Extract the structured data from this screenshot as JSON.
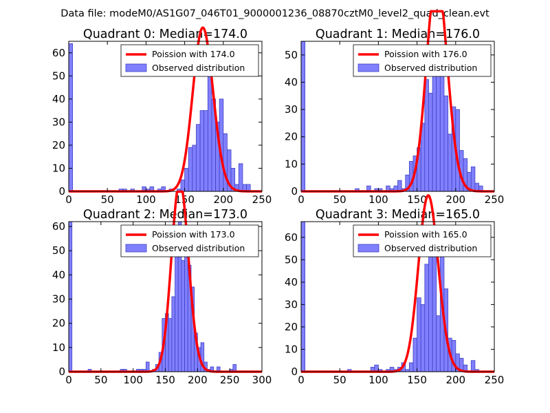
{
  "figure_title": "Data file: modeM0/AS1G07_046T01_9000001236_08870cztM0_level2_quad_clean.evt",
  "colors": {
    "bar_fill": "#8080ff",
    "bar_edge": "#4040c0",
    "fit_line": "#ff0000"
  },
  "chart_data": [
    {
      "type": "bar",
      "title": "Quadrant 0: Median=174.0",
      "median": 174.0,
      "xlim": [
        0,
        250
      ],
      "ylim": [
        0,
        65
      ],
      "xticks": [
        0,
        50,
        100,
        150,
        200,
        250
      ],
      "yticks": [
        0,
        10,
        20,
        30,
        40,
        50,
        60
      ],
      "bin_width": 5,
      "bins": [
        [
          0,
          64
        ],
        [
          65,
          1
        ],
        [
          70,
          1
        ],
        [
          80,
          1
        ],
        [
          95,
          2
        ],
        [
          100,
          1
        ],
        [
          105,
          2
        ],
        [
          115,
          1
        ],
        [
          120,
          2
        ],
        [
          130,
          1
        ],
        [
          140,
          1
        ],
        [
          145,
          5
        ],
        [
          150,
          10
        ],
        [
          155,
          19
        ],
        [
          160,
          20
        ],
        [
          165,
          29
        ],
        [
          170,
          35
        ],
        [
          175,
          35
        ],
        [
          180,
          55
        ],
        [
          185,
          40
        ],
        [
          190,
          30
        ],
        [
          195,
          40
        ],
        [
          200,
          25
        ],
        [
          205,
          18
        ],
        [
          210,
          10
        ],
        [
          215,
          3
        ],
        [
          220,
          12
        ],
        [
          225,
          3
        ],
        [
          230,
          3
        ]
      ],
      "legend": [
        "Poission with 174.0",
        "Observed distribution"
      ]
    },
    {
      "type": "bar",
      "title": "Quadrant 1: Median=176.0",
      "median": 176.0,
      "xlim": [
        0,
        250
      ],
      "ylim": [
        0,
        55
      ],
      "xticks": [
        0,
        50,
        100,
        150,
        200,
        250
      ],
      "yticks": [
        0,
        10,
        20,
        30,
        40,
        50
      ],
      "bin_width": 5,
      "bins": [
        [
          0,
          55
        ],
        [
          70,
          1
        ],
        [
          85,
          2
        ],
        [
          95,
          1
        ],
        [
          100,
          1
        ],
        [
          110,
          2
        ],
        [
          115,
          1
        ],
        [
          120,
          2
        ],
        [
          125,
          4
        ],
        [
          130,
          1
        ],
        [
          135,
          6
        ],
        [
          140,
          11
        ],
        [
          145,
          13
        ],
        [
          150,
          16
        ],
        [
          155,
          25
        ],
        [
          160,
          41
        ],
        [
          165,
          36
        ],
        [
          170,
          45
        ],
        [
          175,
          51
        ],
        [
          180,
          47
        ],
        [
          185,
          35
        ],
        [
          190,
          21
        ],
        [
          195,
          31
        ],
        [
          200,
          30
        ],
        [
          205,
          15
        ],
        [
          210,
          12
        ],
        [
          215,
          7
        ],
        [
          220,
          9
        ],
        [
          225,
          3
        ],
        [
          230,
          2
        ]
      ],
      "legend": [
        "Poission with 176.0",
        "Observed distribution"
      ]
    },
    {
      "type": "bar",
      "title": "Quadrant 2: Median=173.0",
      "median": 173.0,
      "xlim": [
        0,
        300
      ],
      "ylim": [
        0,
        62
      ],
      "xticks": [
        0,
        50,
        100,
        150,
        200,
        250,
        300
      ],
      "yticks": [
        0,
        10,
        20,
        30,
        40,
        50,
        60
      ],
      "bin_width": 5,
      "bins": [
        [
          0,
          62
        ],
        [
          30,
          1
        ],
        [
          80,
          1
        ],
        [
          85,
          1
        ],
        [
          105,
          1
        ],
        [
          110,
          1
        ],
        [
          115,
          1
        ],
        [
          120,
          4
        ],
        [
          130,
          1
        ],
        [
          135,
          3
        ],
        [
          140,
          8
        ],
        [
          145,
          22
        ],
        [
          150,
          24
        ],
        [
          155,
          22
        ],
        [
          160,
          31
        ],
        [
          165,
          49
        ],
        [
          170,
          62
        ],
        [
          175,
          46
        ],
        [
          180,
          49
        ],
        [
          185,
          44
        ],
        [
          190,
          35
        ],
        [
          195,
          16
        ],
        [
          200,
          10
        ],
        [
          205,
          12
        ],
        [
          210,
          4
        ],
        [
          215,
          1
        ],
        [
          220,
          2
        ],
        [
          230,
          2
        ],
        [
          250,
          1
        ],
        [
          255,
          3
        ]
      ],
      "legend": [
        "Poission with 173.0",
        "Observed distribution"
      ]
    },
    {
      "type": "bar",
      "title": "Quadrant 3: Median=165.0",
      "median": 165.0,
      "xlim": [
        0,
        250
      ],
      "ylim": [
        0,
        67
      ],
      "xticks": [
        0,
        50,
        100,
        150,
        200,
        250
      ],
      "yticks": [
        0,
        10,
        20,
        30,
        40,
        50,
        60
      ],
      "bin_width": 5,
      "bins": [
        [
          0,
          67
        ],
        [
          60,
          1
        ],
        [
          90,
          2
        ],
        [
          95,
          3
        ],
        [
          100,
          1
        ],
        [
          110,
          1
        ],
        [
          115,
          2
        ],
        [
          120,
          1
        ],
        [
          125,
          2
        ],
        [
          130,
          4
        ],
        [
          135,
          1
        ],
        [
          140,
          4
        ],
        [
          145,
          15
        ],
        [
          150,
          33
        ],
        [
          155,
          30
        ],
        [
          160,
          48
        ],
        [
          165,
          56
        ],
        [
          170,
          62
        ],
        [
          175,
          25
        ],
        [
          180,
          60
        ],
        [
          185,
          37
        ],
        [
          190,
          15
        ],
        [
          195,
          14
        ],
        [
          200,
          8
        ],
        [
          205,
          6
        ],
        [
          210,
          3
        ],
        [
          220,
          5
        ],
        [
          225,
          1
        ]
      ],
      "legend": [
        "Poission with 165.0",
        "Observed distribution"
      ]
    }
  ]
}
